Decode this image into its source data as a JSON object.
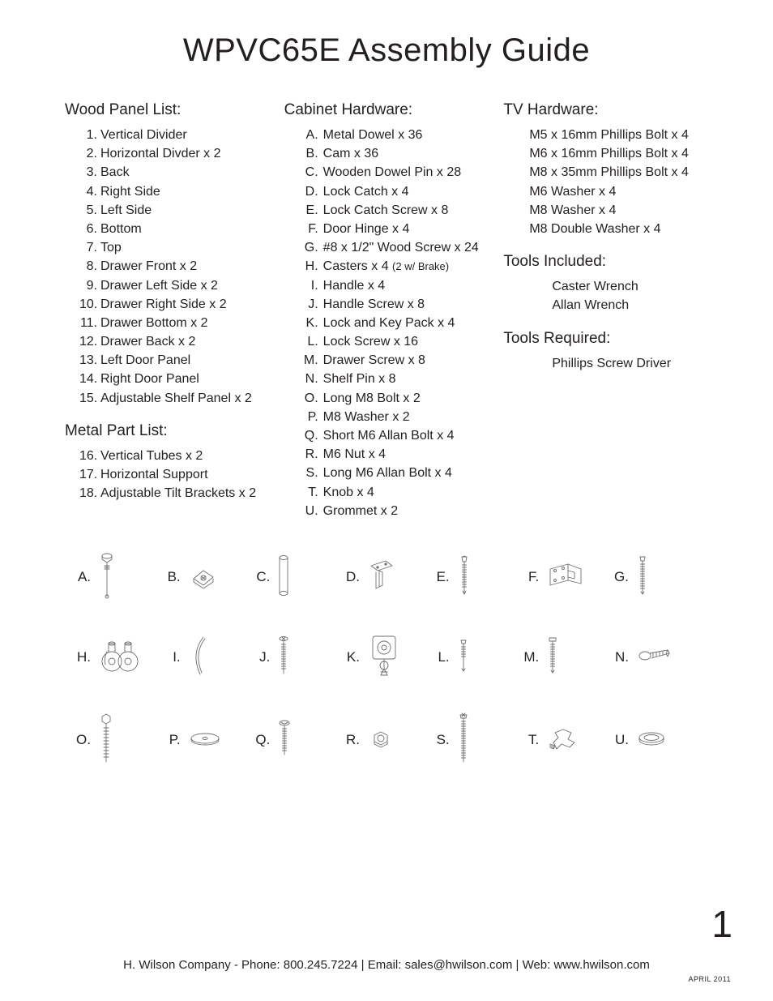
{
  "title": "WPVC65E Assembly Guide",
  "page_number": "1",
  "footer": "H. Wilson Company - Phone: 800.245.7224 | Email:  sales@hwilson.com | Web:  www.hwilson.com",
  "footer_date": "APRIL 2011",
  "sections": {
    "wood_panel": {
      "heading": "Wood Panel List:",
      "items": [
        "Vertical Divider",
        "Horizontal Divder x 2",
        "Back",
        "Right Side",
        "Left Side",
        "Bottom",
        "Top",
        "Drawer Front x 2",
        "Drawer Left Side x 2",
        "Drawer Right Side x 2",
        "Drawer Bottom x 2",
        "Drawer Back x 2",
        "Left Door Panel",
        "Right Door Panel",
        "Adjustable Shelf Panel x 2"
      ]
    },
    "metal_part": {
      "heading": "Metal Part List:",
      "start": 16,
      "items": [
        "Vertical Tubes x 2",
        "Horizontal Support",
        "Adjustable Tilt Brackets x 2"
      ]
    },
    "cabinet_hw": {
      "heading": "Cabinet Hardware:",
      "letters": [
        "A",
        "B",
        "C",
        "D",
        "E",
        "F",
        "G",
        "H",
        "I",
        "J",
        "K",
        "L",
        "M",
        "N",
        "O",
        "P",
        "Q",
        "R",
        "S",
        "T",
        "U"
      ],
      "items": [
        "Metal Dowel x 36",
        "Cam x 36",
        "Wooden Dowel Pin x 28",
        "Lock Catch x 4",
        "Lock Catch Screw x 8",
        "Door Hinge x 4",
        "#8 x 1/2\" Wood Screw x 24",
        "Casters x 4 ",
        "Handle x 4",
        "Handle Screw x 8",
        "Lock and Key Pack x 4",
        "Lock Screw x 16",
        "Drawer Screw x 8",
        "Shelf Pin x 8",
        "Long M8 Bolt x 2",
        "M8 Washer x 2",
        "Short M6 Allan Bolt x 4",
        "M6 Nut x 4",
        "Long M6 Allan Bolt x 4",
        "Knob x 4",
        "Grommet x 2"
      ],
      "casters_note": "(2 w/ Brake)"
    },
    "tv_hw": {
      "heading": "TV Hardware:",
      "items": [
        "M5 x 16mm Phillips Bolt x 4",
        "M6 x 16mm Phillips Bolt x 4",
        "M8 x 35mm Phillips Bolt x 4",
        "M6 Washer x 4",
        "M8 Washer x 4",
        "M8 Double Washer x 4"
      ]
    },
    "tools_inc": {
      "heading": "Tools Included:",
      "items": [
        "Caster Wrench",
        "Allan Wrench"
      ]
    },
    "tools_req": {
      "heading": "Tools Required:",
      "items": [
        "Phillips Screw Driver"
      ]
    }
  },
  "icon_grid": {
    "stroke_color": "#6d6e71",
    "stroke_width": 0.9,
    "rows": [
      [
        "A",
        "B",
        "C",
        "D",
        "E",
        "F",
        "G"
      ],
      [
        "H",
        "I",
        "J",
        "K",
        "L",
        "M",
        "N"
      ],
      [
        "O",
        "P",
        "Q",
        "R",
        "S",
        "T",
        "U"
      ]
    ]
  },
  "colors": {
    "text": "#231f20",
    "icon_stroke": "#6d6e71",
    "background": "#ffffff"
  },
  "typography": {
    "title_fontsize": 40,
    "heading_fontsize": 19,
    "body_fontsize": 16,
    "small_note_fontsize": 13,
    "page_num_fontsize": 46,
    "footer_fontsize": 15,
    "footer_date_fontsize": 9,
    "font_family": "Myriad Pro / Helvetica"
  }
}
